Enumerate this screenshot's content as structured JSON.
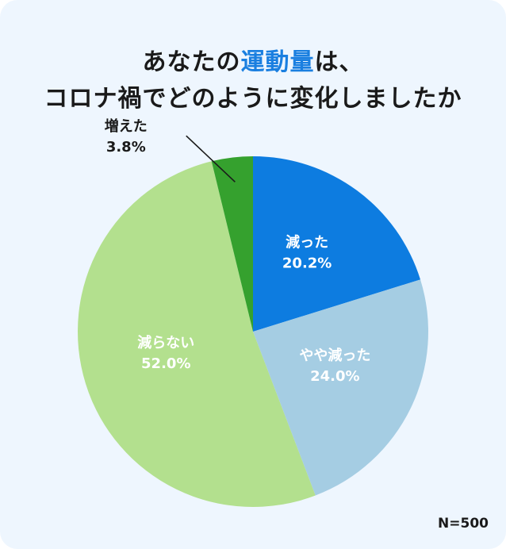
{
  "title": {
    "line1_prefix": "あなたの",
    "line1_accent": "運動量",
    "line1_suffix": "は、",
    "line2": "コロナ禍でどのように変化しましたか"
  },
  "sample_size": "N=500",
  "colors": {
    "accent": "#1a7fe0",
    "card_bg": "#eef6fe"
  },
  "chart_data": {
    "type": "pie",
    "start_angle_deg": 0,
    "direction": "clockwise",
    "slices": [
      {
        "label": "減った",
        "value": 20.2,
        "display": "20.2%",
        "color": "#0d7ce0",
        "label_color": "#ffffff",
        "label_style": "inside"
      },
      {
        "label": "やや減った",
        "value": 24.0,
        "display": "24.0%",
        "color": "#a5cde3",
        "label_color": "#ffffff",
        "label_style": "inside"
      },
      {
        "label": "減らない",
        "value": 52.0,
        "display": "52.0%",
        "color": "#b3e08e",
        "label_color": "#ffffff",
        "label_style": "inside"
      },
      {
        "label": "増えた",
        "value": 3.8,
        "display": "3.8%",
        "color": "#35a12e",
        "label_color": "#1a1a1a",
        "label_style": "outside"
      }
    ]
  }
}
